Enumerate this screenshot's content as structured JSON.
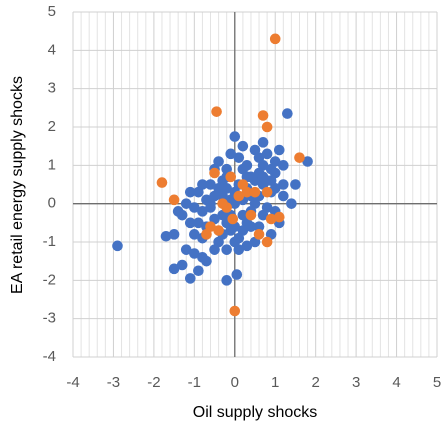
{
  "chart_data": {
    "type": "scatter",
    "xlabel": "Oil supply shocks",
    "ylabel": "EA retail energy supply shocks",
    "xlim": [
      -4,
      5
    ],
    "ylim": [
      -4,
      5
    ],
    "xticks": [
      -4,
      -3,
      -2,
      -1,
      0,
      1,
      2,
      3,
      4,
      5
    ],
    "yticks": [
      -4,
      -3,
      -2,
      -1,
      0,
      1,
      2,
      3,
      4,
      5
    ],
    "grid": true,
    "x_minor_divisions": 5,
    "series": [
      {
        "color": "#4472c4",
        "x": [
          -2.9,
          -1.7,
          -1.5,
          -1.5,
          -1.3,
          -1.1,
          -0.9,
          -1.2,
          -1.0,
          -0.8,
          -0.7,
          -1.3,
          -1.1,
          -1.0,
          -1.2,
          -0.9,
          -0.8,
          -0.7,
          -0.6,
          -0.5,
          -0.4,
          -0.3,
          -0.2,
          -0.1,
          0.0,
          0.1,
          0.2,
          0.3,
          0.4,
          0.5,
          0.6,
          0.7,
          0.8,
          0.9,
          1.0,
          1.1,
          1.2,
          1.3,
          1.8,
          1.4,
          1.2,
          1.0,
          0.9,
          0.7,
          0.6,
          0.5,
          0.4,
          0.3,
          0.2,
          0.1,
          0.0,
          -0.1,
          -0.2,
          -0.3,
          -0.4,
          -0.5,
          -0.6,
          -0.7,
          -0.8,
          -0.9,
          -1.0,
          0.6,
          0.7,
          0.8,
          1.0,
          1.1,
          0.9,
          0.5,
          0.3,
          0.1,
          -0.2,
          -0.2,
          0.05,
          -0.3,
          -0.2,
          -0.1,
          0.0,
          0.1,
          0.2,
          0.3,
          0.4,
          0.5,
          0.6,
          0.7,
          0.8,
          0.9,
          1.0,
          -0.4,
          -0.5,
          -0.6,
          -0.3,
          -0.1,
          0.0,
          0.2,
          0.4,
          -0.8,
          -1.1,
          -1.4,
          0.2,
          0.7,
          -0.2,
          1.2,
          1.5,
          0.3,
          -0.5,
          0.0
        ],
        "values": [
          -1.1,
          -0.85,
          -0.8,
          -1.7,
          -1.6,
          -1.95,
          -1.75,
          -1.2,
          -1.3,
          -1.4,
          -1.5,
          -0.3,
          -0.5,
          -0.1,
          0.0,
          0.3,
          -0.2,
          0.1,
          0.5,
          0.9,
          1.1,
          0.6,
          0.9,
          1.3,
          1.75,
          1.2,
          0.9,
          1.0,
          0.7,
          1.4,
          1.2,
          1.0,
          1.3,
          0.9,
          1.1,
          1.4,
          1.0,
          2.35,
          1.1,
          0.0,
          0.5,
          0.4,
          0.6,
          0.5,
          0.2,
          0.0,
          -0.2,
          -0.5,
          -0.7,
          -0.9,
          -0.6,
          -0.3,
          -0.5,
          -0.8,
          -1.0,
          -0.4,
          -0.1,
          -0.6,
          -0.9,
          -0.5,
          -0.8,
          -0.6,
          -0.3,
          -0.1,
          -0.2,
          -0.5,
          -0.8,
          -1.0,
          -1.1,
          -1.2,
          -1.2,
          -2.0,
          -1.85,
          0.2,
          0.4,
          0.1,
          0.3,
          0.5,
          0.1,
          0.4,
          0.2,
          0.6,
          0.8,
          0.7,
          0.6,
          0.3,
          0.8,
          0.4,
          0.2,
          0.0,
          -0.3,
          -0.7,
          0.0,
          -0.3,
          -0.6,
          0.5,
          0.3,
          -0.2,
          1.5,
          1.6,
          0.7,
          0.2,
          0.5,
          0.7,
          -1.2,
          -1.0
        ]
      },
      {
        "color": "#ed7d31",
        "x": [
          1.0,
          -0.45,
          0.7,
          0.8,
          1.6,
          -1.8,
          -1.5,
          -0.5,
          -0.1,
          0.3,
          0.1,
          -0.2,
          -0.3,
          0.5,
          0.8,
          0.9,
          1.1,
          0.8,
          0.6,
          -0.6,
          -0.7,
          -0.4,
          0.0,
          0.2,
          -0.05,
          0.4
        ],
        "values": [
          4.3,
          2.4,
          2.3,
          2.0,
          1.2,
          0.55,
          0.1,
          0.8,
          0.7,
          0.3,
          0.2,
          -0.1,
          0.0,
          0.3,
          0.3,
          -0.4,
          -0.35,
          -1.0,
          -0.8,
          -0.6,
          -0.8,
          -0.7,
          -2.8,
          0.5,
          -0.4,
          -0.3
        ]
      }
    ]
  }
}
